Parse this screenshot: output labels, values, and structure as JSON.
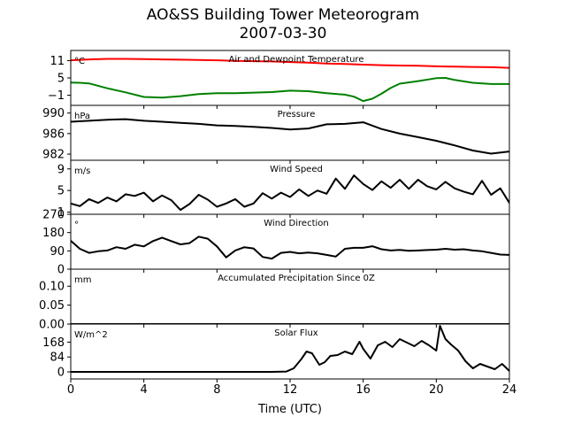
{
  "title": {
    "line1": "AO&SS Building Tower Meteorogram",
    "line2": "2007-03-30"
  },
  "xlabel": "Time (UTC)",
  "chart_data": [
    {
      "type": "line",
      "title": "Air and Dewpoint Temperature",
      "unit": "°C",
      "ylim": [
        -4.5,
        14.5
      ],
      "yticks": [
        11,
        5,
        -1
      ],
      "ytick_labels": [
        "11",
        "5",
        "−1"
      ],
      "xlim": [
        0,
        24
      ],
      "xticks": [
        0,
        4,
        8,
        12,
        16,
        20,
        24
      ],
      "grid": false,
      "legend": "none",
      "series": [
        {
          "color": "#ff0000",
          "x": [
            0,
            1,
            2,
            3,
            4,
            5,
            6,
            7,
            8,
            9,
            10,
            11,
            12,
            13,
            14,
            15,
            16,
            17,
            18,
            19,
            20,
            21,
            22,
            23,
            24
          ],
          "values": [
            11.1,
            11.4,
            11.6,
            11.6,
            11.5,
            11.4,
            11.3,
            11.2,
            11.1,
            10.9,
            10.8,
            10.7,
            10.5,
            10.3,
            10.0,
            9.8,
            9.6,
            9.4,
            9.3,
            9.2,
            9.0,
            8.9,
            8.8,
            8.7,
            8.5
          ]
        },
        {
          "color": "#008000",
          "x": [
            0,
            0.5,
            1,
            2,
            3,
            4,
            5,
            6,
            7,
            8,
            9,
            10,
            11,
            12,
            13,
            14,
            15,
            15.5,
            16,
            16.5,
            17,
            17.5,
            18,
            19,
            20,
            20.5,
            21,
            22,
            23,
            24
          ],
          "values": [
            3.4,
            3.3,
            3.1,
            1.4,
            0.0,
            -1.6,
            -1.8,
            -1.3,
            -0.6,
            -0.3,
            -0.3,
            -0.1,
            0.1,
            0.6,
            0.4,
            -0.3,
            -0.8,
            -1.5,
            -3.0,
            -2.2,
            -0.5,
            1.5,
            3.0,
            3.9,
            4.9,
            5.0,
            4.3,
            3.3,
            2.9,
            2.9
          ]
        }
      ]
    },
    {
      "type": "line",
      "title": "Pressure",
      "unit": "hPa",
      "ylim": [
        980.8,
        991.5
      ],
      "yticks": [
        990,
        986,
        982
      ],
      "ytick_labels": [
        "990",
        "986",
        "982"
      ],
      "xlim": [
        0,
        24
      ],
      "grid": false,
      "series": [
        {
          "color": "#000000",
          "x": [
            0,
            1,
            2,
            3,
            4,
            5,
            6,
            7,
            8,
            9,
            10,
            11,
            12,
            13,
            14,
            15,
            16,
            17,
            18,
            19,
            20,
            21,
            22,
            23,
            24
          ],
          "values": [
            988.3,
            988.5,
            988.7,
            988.8,
            988.5,
            988.3,
            988.1,
            987.9,
            987.6,
            987.5,
            987.3,
            987.1,
            986.8,
            987.0,
            987.8,
            987.9,
            988.2,
            986.9,
            986.0,
            985.3,
            984.6,
            983.7,
            982.7,
            982.1,
            982.5
          ]
        }
      ]
    },
    {
      "type": "line",
      "title": "Wind Speed",
      "unit": "m/s",
      "ylim": [
        0.6,
        10.6
      ],
      "yticks": [
        9,
        5,
        1
      ],
      "ytick_labels": [
        "9",
        "5",
        "1"
      ],
      "xlim": [
        0,
        24
      ],
      "grid": false,
      "series": [
        {
          "color": "#000000",
          "x": [
            0,
            0.5,
            1,
            1.5,
            2,
            2.5,
            3,
            3.5,
            4,
            4.5,
            5,
            5.5,
            6,
            6.5,
            7,
            7.5,
            8,
            8.5,
            9,
            9.5,
            10,
            10.5,
            11,
            11.5,
            12,
            12.5,
            13,
            13.5,
            14,
            14.5,
            15,
            15.5,
            16,
            16.5,
            17,
            17.5,
            18,
            18.5,
            19,
            19.5,
            20,
            20.5,
            21,
            21.5,
            22,
            22.5,
            23,
            23.5,
            24
          ],
          "values": [
            2.6,
            2.1,
            3.4,
            2.7,
            3.7,
            3.0,
            4.3,
            4.0,
            4.6,
            3.0,
            4.1,
            3.2,
            1.4,
            2.5,
            4.2,
            3.3,
            2.0,
            2.6,
            3.4,
            2.0,
            2.6,
            4.5,
            3.5,
            4.6,
            3.8,
            5.2,
            4.0,
            5.0,
            4.4,
            7.2,
            5.3,
            7.8,
            6.2,
            5.1,
            6.7,
            5.5,
            7.0,
            5.3,
            7.0,
            5.8,
            5.2,
            6.6,
            5.4,
            4.8,
            4.3,
            6.8,
            4.2,
            5.4,
            2.7
          ]
        }
      ]
    },
    {
      "type": "line",
      "title": "Wind Direction",
      "unit": "°",
      "ylim": [
        0,
        270
      ],
      "yticks": [
        270,
        180,
        90,
        0
      ],
      "ytick_labels": [
        "270",
        "180",
        "90",
        "0"
      ],
      "xlim": [
        0,
        24
      ],
      "grid": false,
      "series": [
        {
          "color": "#000000",
          "x": [
            0,
            0.5,
            1,
            1.5,
            2,
            2.5,
            3,
            3.5,
            4,
            4.5,
            5,
            5.5,
            6,
            6.5,
            7,
            7.5,
            8,
            8.5,
            9,
            9.5,
            10,
            10.5,
            11,
            11.5,
            12,
            12.5,
            13,
            13.5,
            14,
            14.5,
            15,
            15.5,
            16,
            16.5,
            17,
            17.5,
            18,
            18.5,
            19,
            19.5,
            20,
            20.5,
            21,
            21.5,
            22,
            22.5,
            23,
            23.5,
            24
          ],
          "values": [
            140,
            100,
            80,
            88,
            92,
            108,
            100,
            120,
            112,
            138,
            155,
            138,
            122,
            128,
            160,
            150,
            112,
            58,
            92,
            108,
            102,
            60,
            52,
            80,
            85,
            78,
            82,
            78,
            70,
            62,
            100,
            105,
            105,
            113,
            98,
            92,
            95,
            90,
            92,
            94,
            96,
            100,
            96,
            98,
            92,
            88,
            80,
            72,
            70
          ]
        }
      ]
    },
    {
      "type": "line",
      "title": "Accumulated Precipitation Since 0Z",
      "unit": "mm",
      "ylim": [
        0,
        0.145
      ],
      "yticks": [
        0.1,
        0.05,
        0.0
      ],
      "ytick_labels": [
        "0.10",
        "0.05",
        "0.00"
      ],
      "xlim": [
        0,
        24
      ],
      "grid": false,
      "series": [
        {
          "color": "#000000",
          "x": [
            0,
            24
          ],
          "values": [
            0.0,
            0.0
          ]
        }
      ]
    },
    {
      "type": "line",
      "title": "Solar Flux",
      "unit": "W/m^2",
      "ylim": [
        -40,
        270
      ],
      "yticks": [
        168,
        84,
        0
      ],
      "ytick_labels": [
        "168",
        "84",
        "0"
      ],
      "xlim": [
        0,
        24
      ],
      "grid": false,
      "series": [
        {
          "color": "#000000",
          "x": [
            0,
            11,
            11.8,
            12.2,
            12.6,
            12.9,
            13.2,
            13.6,
            13.9,
            14.2,
            14.6,
            15.0,
            15.4,
            15.8,
            16.0,
            16.4,
            16.8,
            17.2,
            17.6,
            18.0,
            18.4,
            18.8,
            19.2,
            19.6,
            20.0,
            20.2,
            20.5,
            20.8,
            21.2,
            21.6,
            22.0,
            22.4,
            22.8,
            23.2,
            23.6,
            24
          ],
          "values": [
            0,
            0,
            2,
            20,
            70,
            115,
            105,
            40,
            55,
            90,
            95,
            115,
            100,
            170,
            130,
            75,
            150,
            170,
            140,
            185,
            165,
            145,
            175,
            150,
            120,
            260,
            185,
            155,
            120,
            60,
            20,
            45,
            30,
            15,
            45,
            5
          ]
        }
      ]
    }
  ]
}
